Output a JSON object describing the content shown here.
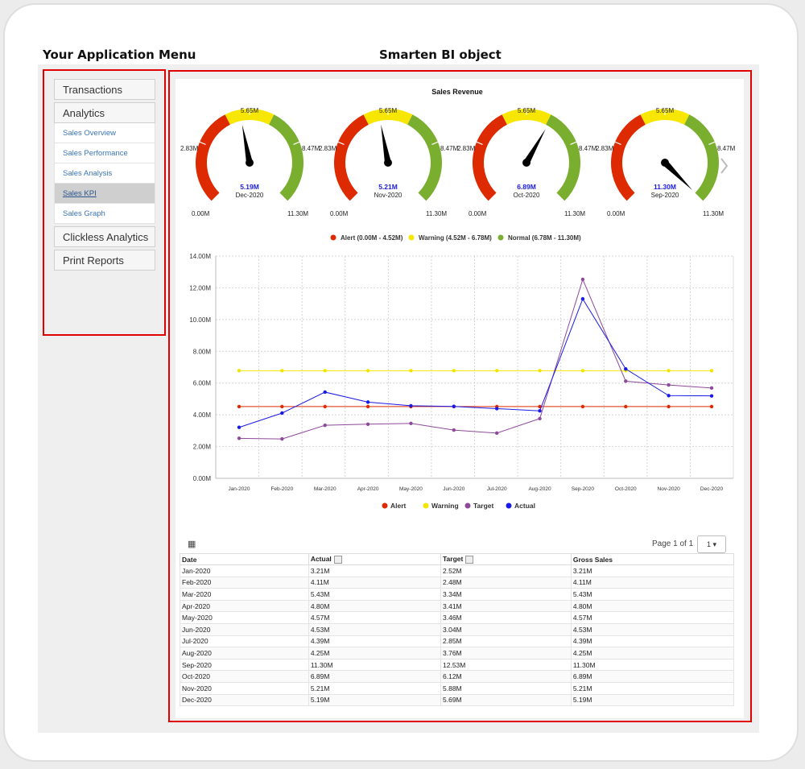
{
  "headings": {
    "menu": "Your Application Menu",
    "bi": "Smarten BI object"
  },
  "menu": {
    "sections": [
      {
        "label": "Transactions",
        "items": []
      },
      {
        "label": "Analytics",
        "items": [
          {
            "label": "Sales Overview",
            "active": false
          },
          {
            "label": "Sales Performance",
            "active": false
          },
          {
            "label": "Sales Analysis",
            "active": false
          },
          {
            "label": "Sales KPI",
            "active": true
          },
          {
            "label": "Sales Graph",
            "active": false
          }
        ]
      },
      {
        "label": "Clickless Analytics",
        "items": []
      },
      {
        "label": "Print Reports",
        "items": []
      }
    ]
  },
  "gauges": {
    "title": "Sales Revenue",
    "scale_labels": [
      "0.00M",
      "2.83M",
      "5.65M",
      "8.47M",
      "11.30M"
    ],
    "min": 0,
    "max": 11.3,
    "bands": [
      {
        "name": "Alert",
        "from": 0,
        "to": 4.52,
        "color": "#dd2a00"
      },
      {
        "name": "Warning",
        "from": 4.52,
        "to": 6.78,
        "color": "#f6e600"
      },
      {
        "name": "Normal",
        "from": 6.78,
        "to": 11.3,
        "color": "#7aae2e"
      }
    ],
    "legend": [
      "Alert (0.00M - 4.52M)",
      "Warning (4.52M - 6.78M)",
      "Normal (6.78M - 11.30M)"
    ],
    "items": [
      {
        "value": 5.19,
        "value_label": "5.19M",
        "date": "Dec-2020"
      },
      {
        "value": 5.21,
        "value_label": "5.21M",
        "date": "Nov-2020"
      },
      {
        "value": 6.89,
        "value_label": "6.89M",
        "date": "Oct-2020"
      },
      {
        "value": 11.3,
        "value_label": "11.30M",
        "date": "Sep-2020"
      }
    ]
  },
  "chart_data": {
    "type": "line",
    "categories": [
      "Jan-2020",
      "Feb-2020",
      "Mar-2020",
      "Apr-2020",
      "May-2020",
      "Jun-2020",
      "Jul-2020",
      "Aug-2020",
      "Sep-2020",
      "Oct-2020",
      "Nov-2020",
      "Dec-2020"
    ],
    "series": [
      {
        "name": "Alert",
        "color": "#dd2a00",
        "values": [
          4.52,
          4.52,
          4.52,
          4.52,
          4.52,
          4.52,
          4.52,
          4.52,
          4.52,
          4.52,
          4.52,
          4.52
        ]
      },
      {
        "name": "Warning",
        "color": "#f2e600",
        "values": [
          6.78,
          6.78,
          6.78,
          6.78,
          6.78,
          6.78,
          6.78,
          6.78,
          6.78,
          6.78,
          6.78,
          6.78
        ]
      },
      {
        "name": "Target",
        "color": "#8e4a9a",
        "values": [
          2.52,
          2.48,
          3.34,
          3.41,
          3.46,
          3.04,
          2.85,
          3.76,
          12.53,
          6.12,
          5.88,
          5.69
        ]
      },
      {
        "name": "Actual",
        "color": "#1a1ae6",
        "values": [
          3.21,
          4.11,
          5.43,
          4.8,
          4.57,
          4.53,
          4.39,
          4.25,
          11.3,
          6.89,
          5.21,
          5.19
        ]
      }
    ],
    "y_ticks": [
      "0.00M",
      "2.00M",
      "4.00M",
      "6.00M",
      "8.00M",
      "10.00M",
      "12.00M",
      "14.00M"
    ],
    "ylim": [
      0,
      14
    ],
    "grid": true,
    "legend": "bottom"
  },
  "table": {
    "pager_text": "Page 1 of 1",
    "pager_value": "1 ▾",
    "grid_icon": "▦",
    "headers": [
      "Date",
      "Actual",
      "Target",
      "Gross Sales"
    ],
    "rows": [
      [
        "Jan-2020",
        "3.21M",
        "2.52M",
        "3.21M"
      ],
      [
        "Feb-2020",
        "4.11M",
        "2.48M",
        "4.11M"
      ],
      [
        "Mar-2020",
        "5.43M",
        "3.34M",
        "5.43M"
      ],
      [
        "Apr-2020",
        "4.80M",
        "3.41M",
        "4.80M"
      ],
      [
        "May-2020",
        "4.57M",
        "3.46M",
        "4.57M"
      ],
      [
        "Jun-2020",
        "4.53M",
        "3.04M",
        "4.53M"
      ],
      [
        "Jul-2020",
        "4.39M",
        "2.85M",
        "4.39M"
      ],
      [
        "Aug-2020",
        "4.25M",
        "3.76M",
        "4.25M"
      ],
      [
        "Sep-2020",
        "11.30M",
        "12.53M",
        "11.30M"
      ],
      [
        "Oct-2020",
        "6.89M",
        "6.12M",
        "6.89M"
      ],
      [
        "Nov-2020",
        "5.21M",
        "5.88M",
        "5.21M"
      ],
      [
        "Dec-2020",
        "5.19M",
        "5.69M",
        "5.19M"
      ]
    ]
  }
}
